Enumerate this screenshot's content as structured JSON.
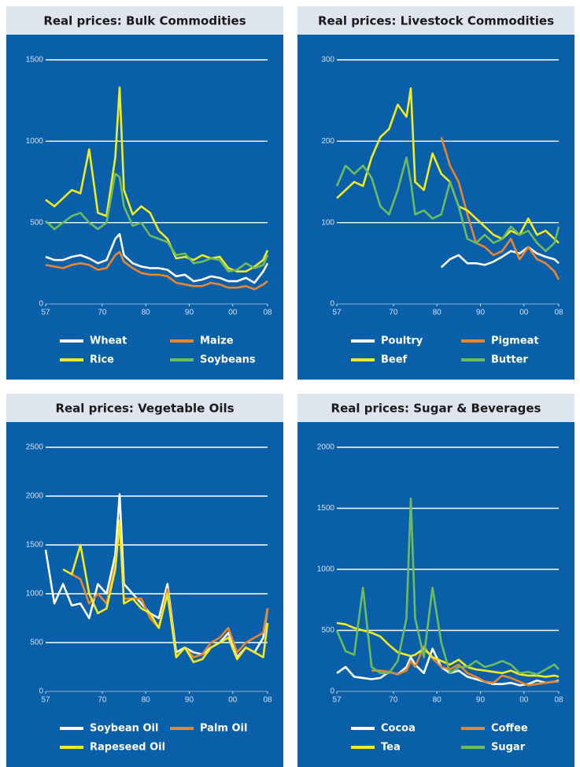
{
  "chart_data": [
    {
      "type": "line",
      "title": "Real prices: Bulk Commodities",
      "x": [
        1957,
        1959,
        1961,
        1963,
        1965,
        1967,
        1969,
        1971,
        1973,
        1974,
        1975,
        1977,
        1979,
        1981,
        1983,
        1985,
        1987,
        1989,
        1991,
        1993,
        1995,
        1997,
        1999,
        2001,
        2003,
        2005,
        2007,
        2008
      ],
      "xlim": [
        1957,
        2008
      ],
      "xticks": [
        {
          "value": 1957,
          "label": "57"
        },
        {
          "value": 1970,
          "label": "70"
        },
        {
          "value": 1980,
          "label": "80"
        },
        {
          "value": 1990,
          "label": "90"
        },
        {
          "value": 2000,
          "label": "00"
        },
        {
          "value": 2008,
          "label": "08"
        }
      ],
      "ylim": [
        0,
        1500
      ],
      "yticks": [
        0,
        500,
        1000,
        1500
      ],
      "grid": true,
      "series": [
        {
          "name": "Wheat",
          "color": "#ffffff",
          "values": [
            290,
            270,
            270,
            290,
            300,
            280,
            250,
            270,
            400,
            430,
            300,
            250,
            230,
            220,
            220,
            210,
            170,
            180,
            140,
            150,
            170,
            160,
            140,
            140,
            160,
            130,
            200,
            250
          ]
        },
        {
          "name": "Maize",
          "color": "#e8862f",
          "values": [
            240,
            230,
            220,
            240,
            250,
            240,
            210,
            220,
            300,
            320,
            260,
            220,
            190,
            180,
            180,
            170,
            130,
            120,
            110,
            110,
            130,
            120,
            100,
            100,
            110,
            90,
            120,
            140
          ]
        },
        {
          "name": "Rice",
          "color": "#f2ec1e",
          "values": [
            640,
            600,
            650,
            700,
            680,
            950,
            560,
            540,
            900,
            1330,
            700,
            550,
            600,
            560,
            450,
            400,
            280,
            290,
            270,
            300,
            280,
            290,
            220,
            200,
            200,
            230,
            270,
            330
          ]
        },
        {
          "name": "Soybeans",
          "color": "#6cbb5e",
          "values": [
            510,
            460,
            500,
            540,
            560,
            500,
            460,
            500,
            800,
            780,
            600,
            480,
            500,
            420,
            400,
            380,
            300,
            310,
            250,
            260,
            280,
            270,
            200,
            210,
            250,
            220,
            240,
            300
          ]
        }
      ]
    },
    {
      "type": "line",
      "title": "Real prices: Livestock Commodities",
      "x": [
        1957,
        1959,
        1961,
        1963,
        1965,
        1967,
        1969,
        1971,
        1973,
        1974,
        1975,
        1977,
        1979,
        1981,
        1983,
        1985,
        1987,
        1989,
        1991,
        1993,
        1995,
        1997,
        1999,
        2001,
        2003,
        2005,
        2007,
        2008
      ],
      "xlim": [
        1957,
        2008
      ],
      "xticks": [
        {
          "value": 1957,
          "label": "57"
        },
        {
          "value": 1970,
          "label": "70"
        },
        {
          "value": 1980,
          "label": "80"
        },
        {
          "value": 1990,
          "label": "90"
        },
        {
          "value": 2000,
          "label": "00"
        },
        {
          "value": 2008,
          "label": "08"
        }
      ],
      "ylim": [
        0,
        300
      ],
      "yticks": [
        0,
        100,
        200,
        300
      ],
      "grid": true,
      "series": [
        {
          "name": "Poultry",
          "color": "#ffffff",
          "values": [
            null,
            null,
            null,
            null,
            null,
            null,
            null,
            null,
            null,
            null,
            null,
            null,
            null,
            45,
            55,
            60,
            50,
            50,
            48,
            52,
            58,
            65,
            62,
            70,
            62,
            58,
            55,
            50
          ]
        },
        {
          "name": "Pigmeat",
          "color": "#e8862f",
          "values": [
            null,
            null,
            null,
            null,
            null,
            null,
            null,
            null,
            null,
            null,
            null,
            null,
            null,
            205,
            170,
            150,
            110,
            75,
            70,
            60,
            65,
            80,
            55,
            70,
            55,
            50,
            40,
            30
          ]
        },
        {
          "name": "Beef",
          "color": "#f2ec1e",
          "values": [
            130,
            140,
            150,
            145,
            180,
            205,
            215,
            245,
            230,
            265,
            150,
            140,
            185,
            160,
            150,
            120,
            115,
            105,
            95,
            85,
            80,
            90,
            85,
            105,
            85,
            90,
            80,
            75
          ]
        },
        {
          "name": "Butter",
          "color": "#6cbb5e",
          "values": [
            145,
            170,
            160,
            170,
            155,
            120,
            110,
            140,
            180,
            150,
            110,
            115,
            105,
            110,
            150,
            120,
            80,
            75,
            85,
            75,
            80,
            95,
            85,
            90,
            75,
            65,
            75,
            95
          ]
        }
      ]
    },
    {
      "type": "line",
      "title": "Real prices: Vegetable Oils",
      "x": [
        1957,
        1959,
        1961,
        1963,
        1965,
        1967,
        1969,
        1971,
        1973,
        1974,
        1975,
        1977,
        1979,
        1981,
        1983,
        1985,
        1987,
        1989,
        1991,
        1993,
        1995,
        1997,
        1999,
        2001,
        2003,
        2005,
        2007,
        2008
      ],
      "xlim": [
        1957,
        2008
      ],
      "xticks": [
        {
          "value": 1957,
          "label": "57"
        },
        {
          "value": 1970,
          "label": "70"
        },
        {
          "value": 1980,
          "label": "80"
        },
        {
          "value": 1990,
          "label": "90"
        },
        {
          "value": 2000,
          "label": "00"
        },
        {
          "value": 2008,
          "label": "08"
        }
      ],
      "ylim": [
        0,
        2500
      ],
      "yticks": [
        0,
        500,
        1000,
        1500,
        2000,
        2500
      ],
      "grid": true,
      "series": [
        {
          "name": "Soybean Oil",
          "color": "#ffffff",
          "values": [
            1450,
            900,
            1100,
            880,
            900,
            750,
            1100,
            1000,
            1400,
            2020,
            1100,
            1000,
            900,
            800,
            750,
            1100,
            400,
            450,
            400,
            380,
            450,
            500,
            600,
            350,
            450,
            400,
            550,
            850
          ]
        },
        {
          "name": "Palm Oil",
          "color": "#e8862f",
          "values": [
            null,
            null,
            null,
            1200,
            1150,
            900,
            1000,
            900,
            1300,
            1700,
            950,
            950,
            950,
            750,
            650,
            1050,
            350,
            450,
            350,
            380,
            500,
            550,
            650,
            400,
            500,
            550,
            600,
            850
          ]
        },
        {
          "name": "Rapeseed Oil",
          "color": "#f2ec1e",
          "values": [
            null,
            null,
            1250,
            1200,
            1500,
            1000,
            800,
            850,
            1250,
            1750,
            900,
            950,
            850,
            800,
            650,
            1000,
            350,
            450,
            300,
            330,
            450,
            500,
            550,
            330,
            450,
            400,
            350,
            700
          ]
        }
      ]
    },
    {
      "type": "line",
      "title": "Real prices: Sugar & Beverages",
      "x": [
        1957,
        1959,
        1961,
        1963,
        1965,
        1967,
        1969,
        1971,
        1973,
        1974,
        1975,
        1977,
        1979,
        1981,
        1983,
        1985,
        1987,
        1989,
        1991,
        1993,
        1995,
        1997,
        1999,
        2001,
        2003,
        2005,
        2007,
        2008
      ],
      "xlim": [
        1957,
        2008
      ],
      "xticks": [
        {
          "value": 1957,
          "label": "57"
        },
        {
          "value": 1970,
          "label": "70"
        },
        {
          "value": 1980,
          "label": "80"
        },
        {
          "value": 1990,
          "label": "90"
        },
        {
          "value": 2000,
          "label": "00"
        },
        {
          "value": 2008,
          "label": "08"
        }
      ],
      "ylim": [
        0,
        2000
      ],
      "yticks": [
        0,
        500,
        1000,
        1500,
        2000
      ],
      "grid": true,
      "series": [
        {
          "name": "Cocoa",
          "color": "#ffffff",
          "values": [
            150,
            200,
            120,
            110,
            100,
            110,
            160,
            140,
            200,
            280,
            220,
            150,
            350,
            200,
            150,
            170,
            120,
            100,
            80,
            60,
            60,
            70,
            50,
            60,
            90,
            70,
            80,
            90
          ]
        },
        {
          "name": "Coffee",
          "color": "#e8862f",
          "values": [
            null,
            null,
            null,
            null,
            170,
            170,
            160,
            140,
            170,
            250,
            200,
            370,
            270,
            200,
            180,
            220,
            150,
            120,
            80,
            70,
            130,
            110,
            80,
            50,
            60,
            70,
            80,
            80
          ]
        },
        {
          "name": "Tea",
          "color": "#f2ec1e",
          "values": [
            560,
            550,
            520,
            500,
            480,
            450,
            380,
            320,
            300,
            290,
            300,
            350,
            280,
            250,
            220,
            260,
            200,
            180,
            170,
            160,
            150,
            170,
            140,
            130,
            130,
            120,
            130,
            120
          ]
        },
        {
          "name": "Sugar",
          "color": "#6cbb5e",
          "values": [
            500,
            330,
            300,
            850,
            200,
            150,
            150,
            250,
            600,
            1580,
            600,
            280,
            850,
            400,
            150,
            200,
            200,
            250,
            200,
            220,
            250,
            220,
            150,
            160,
            140,
            180,
            220,
            180
          ]
        }
      ]
    }
  ]
}
